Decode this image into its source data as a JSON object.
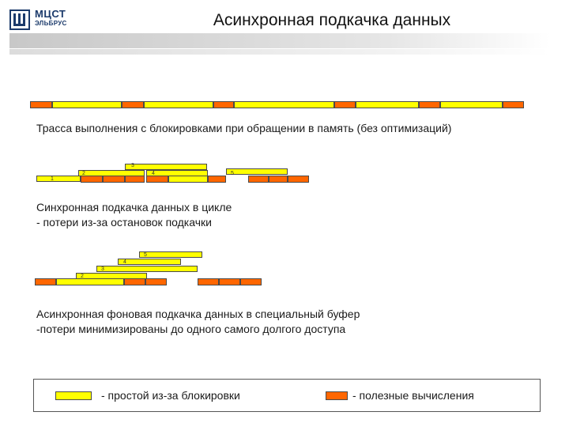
{
  "header": {
    "logo_line1": "МЦСТ",
    "logo_line2": "ЭЛЬБРУС",
    "title": "Асинхронная подкачка данных"
  },
  "section1": {
    "caption": "Трасса выполнения с блокировками при обращении в память (без оптимизаций)"
  },
  "section2": {
    "labels": [
      "1",
      "2",
      "3",
      "4",
      "5"
    ],
    "caption_line1": "Синхронная подкачка данных в цикле",
    "caption_line2": "- потери из-за остановок подкачки"
  },
  "section3": {
    "labels": [
      "2",
      "3",
      "4",
      "5"
    ],
    "caption_line1": "Асинхронная фоновая подкачка данных в специальный буфер",
    "caption_line2": "-потери минимизированы до одного самого долгого доступа"
  },
  "legend": {
    "idle": "- простой из-за блокировки",
    "useful": "- полезные вычисления"
  },
  "colors": {
    "idle": "#ffff00",
    "useful": "#ff6600"
  }
}
